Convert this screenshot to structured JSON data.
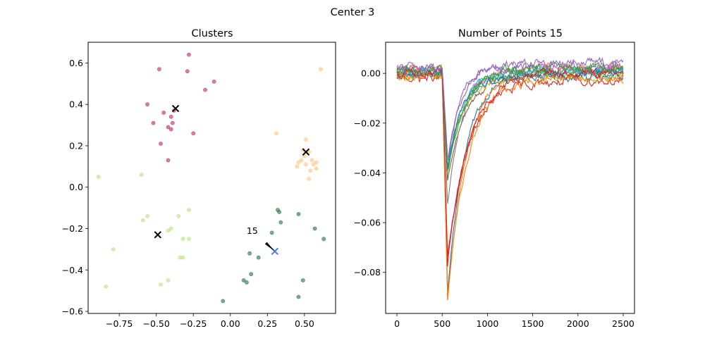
{
  "figure": {
    "suptitle": "Center 3"
  },
  "chart_data": [
    {
      "type": "scatter",
      "title": "Clusters",
      "xlabel": "",
      "ylabel": "",
      "xlim": [
        -0.96,
        0.71
      ],
      "ylim": [
        -0.61,
        0.7
      ],
      "xticks": [
        -0.75,
        -0.5,
        -0.25,
        0.0,
        0.25,
        0.5
      ],
      "xtick_labels": [
        "−0.75",
        "−0.50",
        "−0.25",
        "0.00",
        "0.25",
        "0.50"
      ],
      "yticks": [
        -0.6,
        -0.4,
        -0.2,
        0.0,
        0.2,
        0.4,
        0.6
      ],
      "ytick_labels": [
        "−0.6",
        "−0.4",
        "−0.2",
        "0.0",
        "0.2",
        "0.4",
        "0.6"
      ],
      "clusters": [
        {
          "color": "#c0396a",
          "points": [
            [
              -0.28,
              0.64
            ],
            [
              -0.48,
              0.57
            ],
            [
              -0.29,
              0.56
            ],
            [
              -0.11,
              0.51
            ],
            [
              -0.17,
              0.47
            ],
            [
              -0.56,
              0.4
            ],
            [
              -0.38,
              0.37
            ],
            [
              -0.45,
              0.36
            ],
            [
              -0.4,
              0.34
            ],
            [
              -0.39,
              0.31
            ],
            [
              -0.52,
              0.31
            ],
            [
              -0.42,
              0.29
            ],
            [
              -0.4,
              0.28
            ],
            [
              -0.25,
              0.26
            ],
            [
              -0.47,
              0.21
            ],
            [
              -0.42,
              0.13
            ]
          ]
        },
        {
          "color": "#ffc784",
          "points": [
            [
              0.61,
              0.57
            ],
            [
              0.31,
              0.26
            ],
            [
              0.51,
              0.23
            ],
            [
              0.49,
              0.18
            ],
            [
              0.53,
              0.17
            ],
            [
              0.5,
              0.15
            ],
            [
              0.55,
              0.13
            ],
            [
              0.48,
              0.13
            ],
            [
              0.46,
              0.12
            ],
            [
              0.58,
              0.12
            ],
            [
              0.51,
              0.11
            ],
            [
              0.56,
              0.11
            ],
            [
              0.45,
              0.1
            ],
            [
              0.58,
              0.09
            ],
            [
              0.54,
              0.08
            ],
            [
              0.53,
              0.04
            ]
          ]
        },
        {
          "color": "#bde38a",
          "points": [
            [
              -0.89,
              0.05
            ],
            [
              -0.6,
              0.06
            ],
            [
              -0.28,
              -0.11
            ],
            [
              -0.56,
              -0.14
            ],
            [
              -0.35,
              -0.14
            ],
            [
              -0.59,
              -0.16
            ],
            [
              -0.4,
              -0.2
            ],
            [
              -0.42,
              -0.21
            ],
            [
              -0.28,
              -0.25
            ],
            [
              -0.32,
              -0.25
            ],
            [
              -0.79,
              -0.3
            ],
            [
              -0.34,
              -0.34
            ],
            [
              -0.32,
              -0.34
            ],
            [
              -0.42,
              -0.45
            ],
            [
              -0.47,
              -0.47
            ],
            [
              -0.84,
              -0.48
            ]
          ]
        },
        {
          "color": "#2e7d52",
          "points": [
            [
              0.32,
              -0.11
            ],
            [
              0.33,
              -0.12
            ],
            [
              0.46,
              -0.13
            ],
            [
              0.34,
              -0.17
            ],
            [
              0.57,
              -0.2
            ],
            [
              0.28,
              -0.22
            ],
            [
              0.63,
              -0.25
            ],
            [
              0.13,
              -0.32
            ],
            [
              0.19,
              -0.34
            ],
            [
              0.14,
              -0.42
            ],
            [
              0.09,
              -0.45
            ],
            [
              0.49,
              -0.45
            ],
            [
              0.11,
              -0.46
            ],
            [
              0.46,
              -0.53
            ],
            [
              -0.05,
              -0.55
            ]
          ]
        }
      ],
      "centers": [
        {
          "x": -0.37,
          "y": 0.38,
          "color": "#000000"
        },
        {
          "x": 0.51,
          "y": 0.17,
          "color": "#000000"
        },
        {
          "x": -0.49,
          "y": -0.23,
          "color": "#000000"
        },
        {
          "x": 0.3,
          "y": -0.31,
          "color": "#4a78e6"
        }
      ],
      "annotation": {
        "text": "15",
        "x": 0.11,
        "y": -0.225,
        "arrow_tail": [
          0.24,
          -0.27
        ],
        "arrow_head": [
          0.3,
          -0.31
        ]
      }
    },
    {
      "type": "line",
      "title": "Number of Points 15",
      "xlabel": "",
      "ylabel": "",
      "xlim": [
        -125,
        2625
      ],
      "ylim": [
        -0.0965,
        0.0125
      ],
      "xticks": [
        0,
        500,
        1000,
        1500,
        2000,
        2500
      ],
      "xtick_labels": [
        "0",
        "500",
        "1000",
        "1500",
        "2000",
        "2500"
      ],
      "yticks": [
        0.0,
        -0.02,
        -0.04,
        -0.06,
        -0.08
      ],
      "ytick_labels": [
        "0.00",
        "−0.02",
        "−0.04",
        "−0.06",
        "−0.08"
      ],
      "x_range": [
        0,
        2500
      ],
      "spike_start": 500,
      "spike_x": 560,
      "series": [
        {
          "color": "#1f77b4",
          "trough": -0.088,
          "tau": 190,
          "offset": 0.0
        },
        {
          "color": "#ff7f0e",
          "trough": -0.092,
          "tau": 210,
          "offset": 0.002
        },
        {
          "color": "#2ca02c",
          "trough": -0.041,
          "tau": 170,
          "offset": 0.001
        },
        {
          "color": "#d62728",
          "trough": -0.076,
          "tau": 230,
          "offset": -0.003
        },
        {
          "color": "#9467bd",
          "trough": -0.037,
          "tau": 150,
          "offset": 0.003
        },
        {
          "color": "#8c564b",
          "trough": -0.043,
          "tau": 200,
          "offset": 0.0
        },
        {
          "color": "#e377c2",
          "trough": -0.04,
          "tau": 180,
          "offset": 0.002
        },
        {
          "color": "#7f7f7f",
          "trough": -0.053,
          "tau": 160,
          "offset": 0.001
        },
        {
          "color": "#bcbd22",
          "trough": -0.039,
          "tau": 175,
          "offset": -0.001
        },
        {
          "color": "#17becf",
          "trough": -0.038,
          "tau": 165,
          "offset": 0.001
        },
        {
          "color": "#1f77b4",
          "trough": -0.038,
          "tau": 155,
          "offset": -0.001
        },
        {
          "color": "#ff7f0e",
          "trough": -0.09,
          "tau": 220,
          "offset": -0.002
        },
        {
          "color": "#2ca02c",
          "trough": -0.04,
          "tau": 185,
          "offset": 0.002
        },
        {
          "color": "#d62728",
          "trough": -0.074,
          "tau": 240,
          "offset": 0.0
        },
        {
          "color": "#9467bd",
          "trough": -0.036,
          "tau": 145,
          "offset": 0.004
        }
      ]
    }
  ]
}
